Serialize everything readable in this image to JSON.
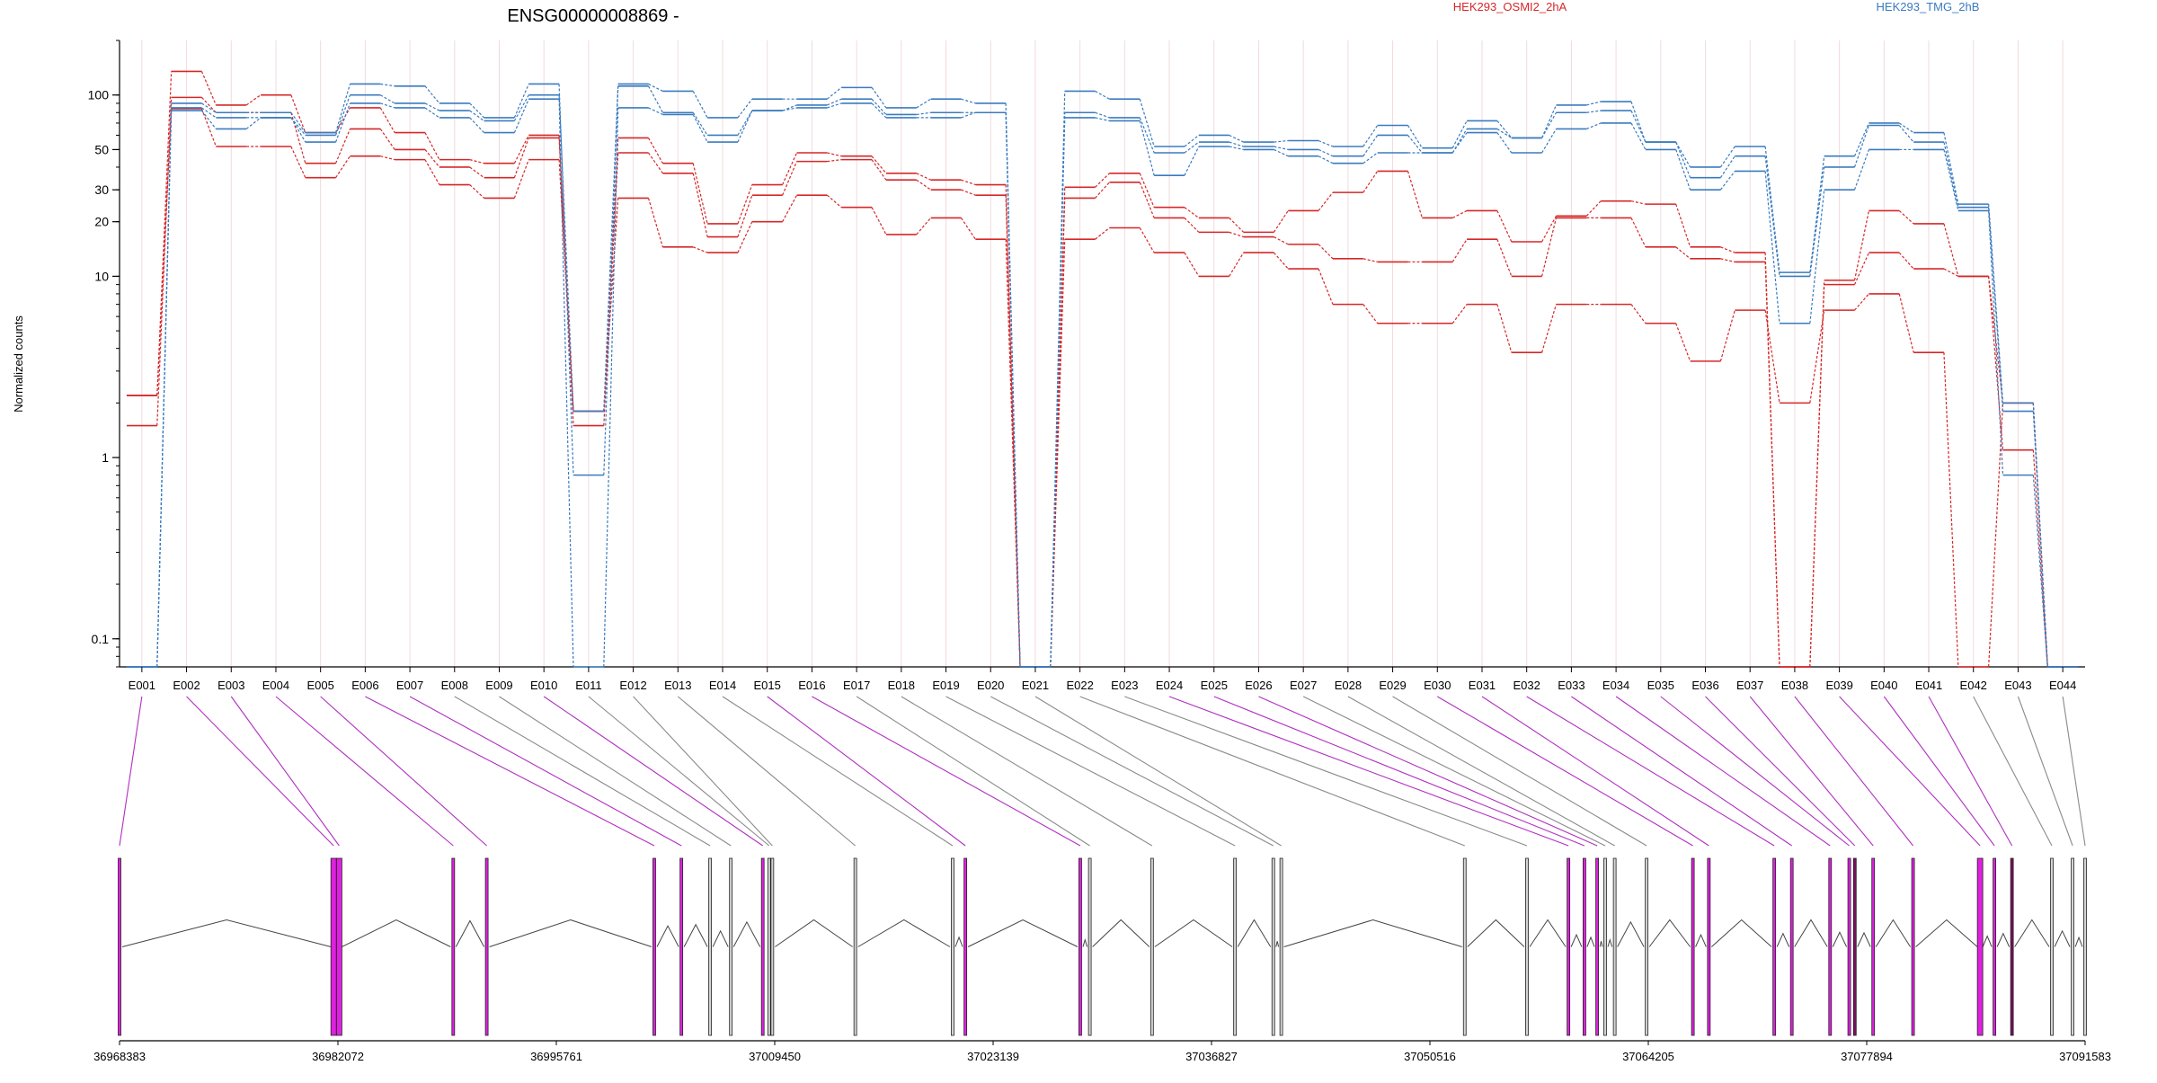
{
  "chart_data": {
    "type": "line",
    "title": "ENSG00000008869 -",
    "ylabel": "Normalized counts",
    "yscale": "log",
    "ylim": [
      0.07,
      200
    ],
    "y_ticks": [
      0.1,
      1,
      10,
      20,
      30,
      50,
      100
    ],
    "y_tick_labels": [
      "0.1",
      "1",
      "10",
      "20",
      "30",
      "50",
      "100"
    ],
    "legend": [
      {
        "name": "HEK293_OSMI2_2hA",
        "color": "#d62728"
      },
      {
        "name": "HEK293_TMG_2hB",
        "color": "#3a7bbf"
      }
    ],
    "categories": [
      "E001",
      "E002",
      "E003",
      "E004",
      "E005",
      "E006",
      "E007",
      "E008",
      "E009",
      "E010",
      "E011",
      "E012",
      "E013",
      "E014",
      "E015",
      "E016",
      "E017",
      "E018",
      "E019",
      "E020",
      "E021",
      "E022",
      "E023",
      "E024",
      "E025",
      "E026",
      "E027",
      "E028",
      "E029",
      "E030",
      "E031",
      "E032",
      "E033",
      "E034",
      "E035",
      "E036",
      "E037",
      "E038",
      "E039",
      "E040",
      "E041",
      "E042",
      "E043",
      "E044"
    ],
    "series": [
      {
        "color": "#d62728",
        "values": [
          2.2,
          135,
          88,
          100,
          62,
          85,
          62,
          44,
          42,
          60,
          1.8,
          58,
          42,
          19.5,
          32,
          48,
          46,
          37,
          34,
          32,
          0.07,
          31,
          37,
          24,
          21,
          17.5,
          23,
          29,
          38,
          21,
          23,
          15.5,
          21.5,
          26,
          25,
          14.5,
          13.5,
          0.07,
          9.5,
          23,
          19.5,
          10,
          2.0,
          0.07
        ]
      },
      {
        "color": "#d62728",
        "values": [
          1.5,
          97,
          80,
          80,
          42,
          65,
          50,
          40,
          35,
          58,
          1.5,
          48,
          37,
          16.5,
          28,
          43,
          44,
          34,
          30,
          28,
          0.07,
          27,
          33,
          21,
          17.5,
          16.5,
          15,
          12.5,
          12,
          12,
          16,
          10,
          21,
          21,
          14.5,
          12.5,
          12,
          0.07,
          9,
          13.5,
          11,
          10,
          1.1,
          0.07
        ]
      },
      {
        "color": "#d62728",
        "values": [
          2.2,
          84,
          52,
          52,
          35,
          46,
          44,
          32,
          27,
          44,
          1.8,
          27,
          14.5,
          13.5,
          20,
          28,
          24,
          17,
          21,
          16,
          0.07,
          16,
          18.5,
          13.5,
          10,
          13.5,
          11,
          7,
          5.5,
          5.5,
          7,
          3.8,
          7,
          7,
          5.5,
          3.4,
          6.5,
          2.0,
          6.5,
          8,
          3.8,
          0.07,
          2.0,
          0.07
        ]
      },
      {
        "color": "#3a7bbf",
        "values": [
          0.07,
          90,
          80,
          80,
          62,
          115,
          112,
          90,
          75,
          115,
          0.8,
          115,
          105,
          75,
          95,
          95,
          110,
          85,
          95,
          90,
          0.07,
          105,
          95,
          52,
          60,
          55,
          56,
          52,
          68,
          51,
          72,
          58,
          88,
          92,
          55,
          40,
          52,
          10.5,
          46,
          70,
          62,
          25,
          2.0,
          0.07
        ]
      },
      {
        "color": "#3a7bbf",
        "values": [
          0.07,
          85,
          75,
          75,
          60,
          100,
          90,
          82,
          72,
          100,
          1.8,
          112,
          80,
          60,
          82,
          88,
          95,
          78,
          80,
          80,
          0.07,
          80,
          75,
          48,
          55,
          52,
          50,
          46,
          60,
          48,
          65,
          58,
          80,
          82,
          55,
          35,
          46,
          10,
          40,
          68,
          55,
          24,
          1.8,
          0.07
        ]
      },
      {
        "color": "#3a7bbf",
        "values": [
          0.07,
          82,
          65,
          75,
          55,
          90,
          85,
          75,
          62,
          95,
          0.07,
          85,
          78,
          55,
          82,
          85,
          90,
          75,
          75,
          80,
          0.07,
          75,
          72,
          36,
          52,
          50,
          46,
          42,
          48,
          48,
          62,
          48,
          65,
          70,
          50,
          30,
          38,
          5.5,
          30,
          50,
          50,
          23,
          0.8,
          0.07
        ]
      }
    ],
    "genomic_coordinates": [
      36968383,
      36982072,
      36995761,
      37009450,
      37023139,
      37036827,
      37050516,
      37064205,
      37077894,
      37091583
    ],
    "exon_genome_positions": [
      36968383,
      36981800,
      36982150,
      36989300,
      36991400,
      37001900,
      37003600,
      37005400,
      37006700,
      37008700,
      37009100,
      37009300,
      37014500,
      37020600,
      37021400,
      37028600,
      37029200,
      37033100,
      37038300,
      37040700,
      37041200,
      37052700,
      37056600,
      37059200,
      37060200,
      37061000,
      37061500,
      37062100,
      37064100,
      37067000,
      37068000,
      37072100,
      37073200,
      37075600,
      37076800,
      37077150,
      37078300,
      37080800,
      37085000,
      37085900,
      37087000,
      37089500,
      37090800,
      37091583
    ],
    "exon_types": [
      "magenta",
      "magenta",
      "magenta",
      "magenta",
      "magenta",
      "magenta",
      "magenta",
      "gray",
      "gray",
      "magenta",
      "gray",
      "gray",
      "gray",
      "gray",
      "magenta",
      "magenta",
      "gray",
      "gray",
      "gray",
      "gray",
      "gray",
      "gray",
      "gray",
      "magenta",
      "magenta",
      "magenta",
      "gray",
      "gray",
      "gray",
      "magenta",
      "magenta",
      "magenta",
      "magenta",
      "magenta",
      "magenta",
      "dark",
      "magenta",
      "magenta",
      "magenta",
      "magenta",
      "dark",
      "gray",
      "gray",
      "gray"
    ]
  }
}
